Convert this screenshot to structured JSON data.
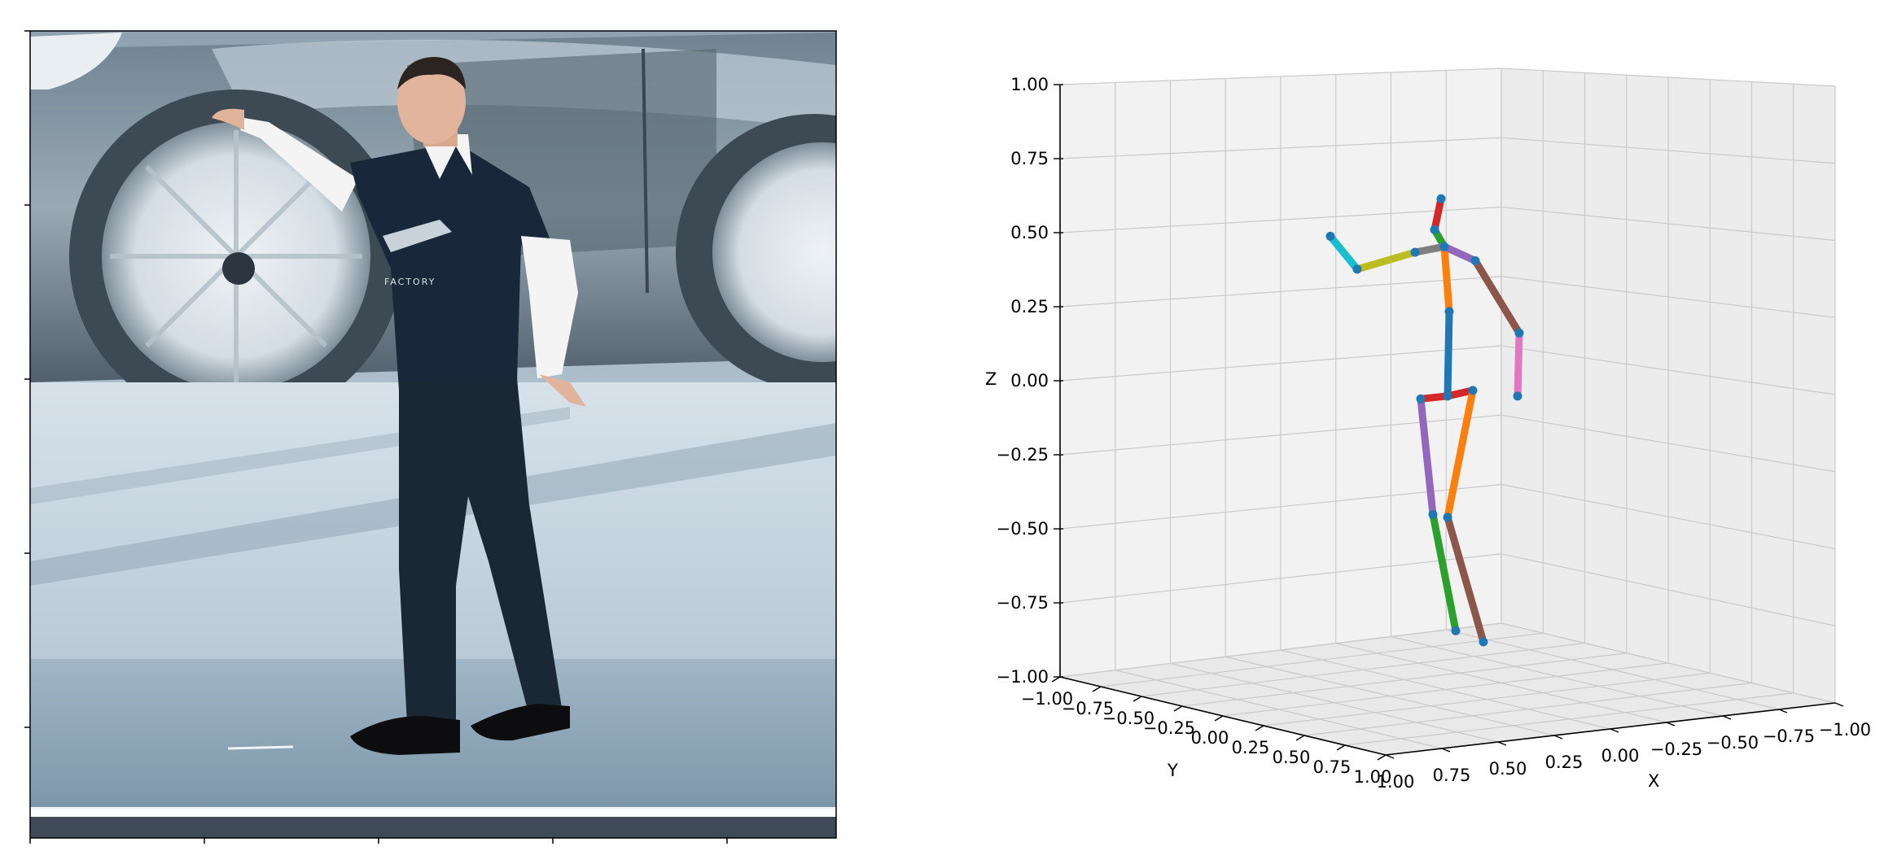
{
  "figure": {
    "left_panel": {
      "kind": "photo",
      "scene": "person-on-stage-with-car-backdrop",
      "photo_text": "FACTORY"
    },
    "right_panel": {
      "kind": "3d-pose-plot"
    }
  },
  "chart_data": {
    "type": "scatter",
    "projection": "3d",
    "title": "",
    "xlabel": "X",
    "ylabel": "Y",
    "zlabel": "Z",
    "xlim": [
      -1.0,
      1.0
    ],
    "ylim": [
      -1.0,
      1.0
    ],
    "zlim": [
      -1.0,
      1.0
    ],
    "x_ticks": [
      "1.00",
      "0.75",
      "0.50",
      "0.25",
      "0.00",
      "−0.25",
      "−0.50",
      "−0.75",
      "−1.00"
    ],
    "y_ticks": [
      "−1.00",
      "−0.75",
      "−0.50",
      "−0.25",
      "0.00",
      "0.25",
      "0.50",
      "0.75",
      "1.00"
    ],
    "z_ticks": [
      "1.00",
      "0.75",
      "0.50",
      "0.25",
      "0.00",
      "−0.25",
      "−0.50",
      "−0.75",
      "−1.00"
    ],
    "grid": true,
    "pane_color": "#f2f2f2",
    "joint_color": "#1f77b4",
    "joints": [
      {
        "id": "pelvis",
        "z": -0.05
      },
      {
        "id": "right_hip",
        "z": -0.03
      },
      {
        "id": "right_knee",
        "z": -0.48
      },
      {
        "id": "right_ankle",
        "z": -0.87
      },
      {
        "id": "left_hip",
        "z": -0.06
      },
      {
        "id": "left_knee",
        "z": -0.47
      },
      {
        "id": "left_ankle",
        "z": -0.9
      },
      {
        "id": "spine",
        "z": 0.25
      },
      {
        "id": "thorax",
        "z": 0.48
      },
      {
        "id": "neck",
        "z": 0.54
      },
      {
        "id": "head",
        "z": 0.65
      },
      {
        "id": "left_shoulder",
        "z": 0.43
      },
      {
        "id": "left_elbow",
        "z": 0.22
      },
      {
        "id": "left_wrist",
        "z": -0.05
      },
      {
        "id": "right_shoulder",
        "z": 0.46
      },
      {
        "id": "right_elbow",
        "z": 0.4
      },
      {
        "id": "right_wrist",
        "z": 0.54
      }
    ],
    "bones": [
      {
        "from": "pelvis",
        "to": "right_hip",
        "color": "#d62728"
      },
      {
        "from": "right_hip",
        "to": "right_knee",
        "color": "#ff7f0e"
      },
      {
        "from": "right_knee",
        "to": "right_ankle",
        "color": "#8c564b"
      },
      {
        "from": "pelvis",
        "to": "left_hip",
        "color": "#d62728"
      },
      {
        "from": "left_hip",
        "to": "left_knee",
        "color": "#9467bd"
      },
      {
        "from": "left_knee",
        "to": "left_ankle",
        "color": "#2ca02c"
      },
      {
        "from": "pelvis",
        "to": "spine",
        "color": "#1f77b4"
      },
      {
        "from": "spine",
        "to": "thorax",
        "color": "#ff7f0e"
      },
      {
        "from": "thorax",
        "to": "neck",
        "color": "#2ca02c"
      },
      {
        "from": "neck",
        "to": "head",
        "color": "#d62728"
      },
      {
        "from": "thorax",
        "to": "left_shoulder",
        "color": "#9467bd"
      },
      {
        "from": "left_shoulder",
        "to": "left_elbow",
        "color": "#8c564b"
      },
      {
        "from": "left_elbow",
        "to": "left_wrist",
        "color": "#e377c2"
      },
      {
        "from": "thorax",
        "to": "right_shoulder",
        "color": "#7f7f7f"
      },
      {
        "from": "right_shoulder",
        "to": "right_elbow",
        "color": "#bcbd22"
      },
      {
        "from": "right_elbow",
        "to": "right_wrist",
        "color": "#17becf"
      }
    ]
  }
}
